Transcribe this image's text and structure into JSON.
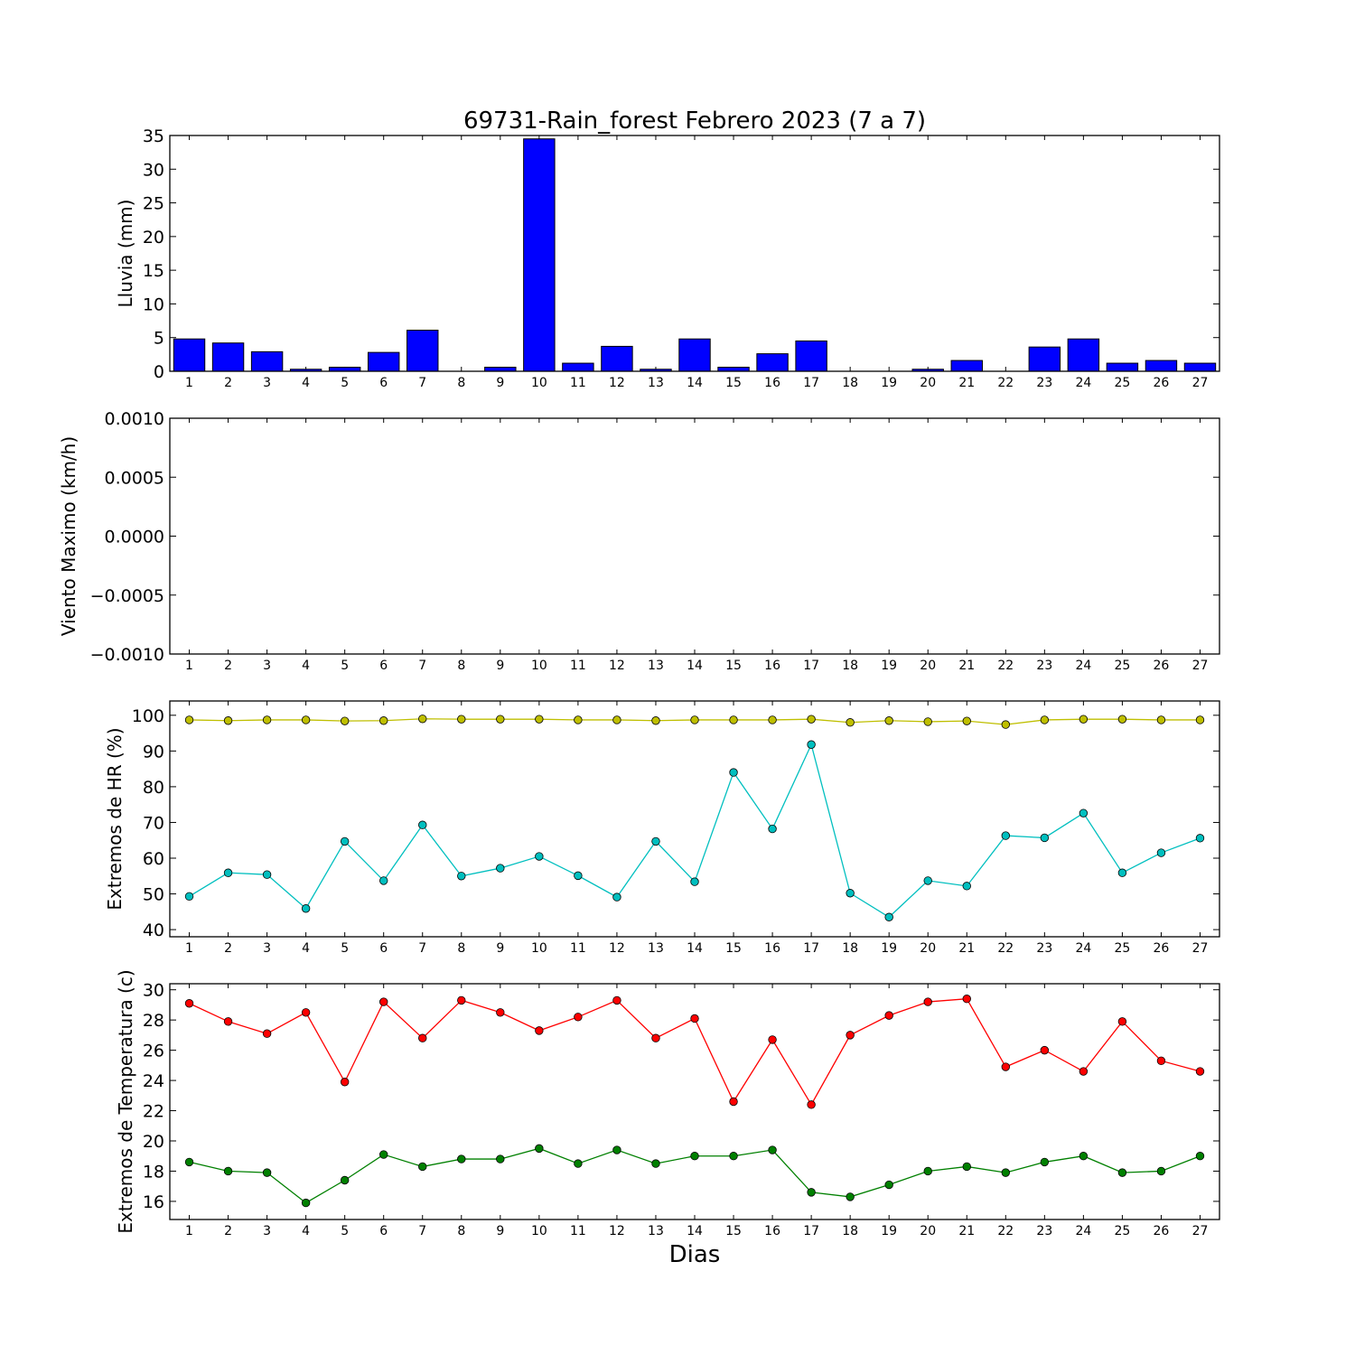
{
  "title": "69731-Rain_forest Febrero 2023  (7 a 7)",
  "xlabel": "Dias",
  "chart_data": [
    {
      "type": "bar",
      "ylabel": "Lluvia (mm)",
      "ylim": [
        0,
        35
      ],
      "yticks": [
        "0",
        "5",
        "10",
        "15",
        "20",
        "25",
        "30",
        "35"
      ],
      "categories": [
        "1",
        "2",
        "3",
        "4",
        "5",
        "6",
        "7",
        "8",
        "9",
        "10",
        "11",
        "12",
        "13",
        "14",
        "15",
        "16",
        "17",
        "18",
        "19",
        "20",
        "21",
        "22",
        "23",
        "24",
        "25",
        "26",
        "27"
      ],
      "values": [
        4.8,
        4.2,
        2.9,
        0.3,
        0.6,
        2.8,
        6.1,
        0,
        0.6,
        34.5,
        1.2,
        3.7,
        0.3,
        4.8,
        0.6,
        2.6,
        4.5,
        0,
        0,
        0.3,
        1.6,
        0,
        3.6,
        4.8,
        1.2,
        1.6,
        1.2
      ],
      "color": "#0000ff",
      "grid": false
    },
    {
      "type": "line",
      "ylabel": "Viento Maximo (km/h)",
      "ylim": [
        -0.001,
        0.001
      ],
      "yticks": [
        "0.0010",
        "0.0005",
        "0.0000",
        "−0.0005",
        "−0.0010"
      ],
      "x": [
        1,
        2,
        3,
        4,
        5,
        6,
        7,
        8,
        9,
        10,
        11,
        12,
        13,
        14,
        15,
        16,
        17,
        18,
        19,
        20,
        21,
        22,
        23,
        24,
        25,
        26,
        27
      ],
      "series": [],
      "grid": false
    },
    {
      "type": "line",
      "ylabel": "Extremos de HR (%)",
      "ylim": [
        38,
        104
      ],
      "yticks": [
        "40",
        "50",
        "60",
        "70",
        "80",
        "90",
        "100"
      ],
      "x": [
        1,
        2,
        3,
        4,
        5,
        6,
        7,
        8,
        9,
        10,
        11,
        12,
        13,
        14,
        15,
        16,
        17,
        18,
        19,
        20,
        21,
        22,
        23,
        24,
        25,
        26,
        27
      ],
      "series": [
        {
          "color": "#bfbf00",
          "values": [
            98.7,
            98.5,
            98.7,
            98.7,
            98.4,
            98.5,
            99.0,
            98.9,
            98.9,
            98.9,
            98.7,
            98.7,
            98.5,
            98.7,
            98.7,
            98.7,
            98.9,
            98.0,
            98.5,
            98.2,
            98.4,
            97.4,
            98.7,
            98.9,
            98.9,
            98.7,
            98.7
          ]
        },
        {
          "color": "#00bfbf",
          "values": [
            49.3,
            55.9,
            55.4,
            45.9,
            64.7,
            53.7,
            69.3,
            55.0,
            57.2,
            60.5,
            55.1,
            49.1,
            64.7,
            53.4,
            84.0,
            68.2,
            91.8,
            50.2,
            43.5,
            53.7,
            52.2,
            66.3,
            65.7,
            72.6,
            55.9,
            61.5,
            65.6
          ]
        }
      ],
      "grid": false
    },
    {
      "type": "line",
      "ylabel": "Extremos de Temperatura (c)",
      "ylim": [
        14.8,
        30.4
      ],
      "yticks": [
        "16",
        "18",
        "20",
        "22",
        "24",
        "26",
        "28",
        "30"
      ],
      "x": [
        1,
        2,
        3,
        4,
        5,
        6,
        7,
        8,
        9,
        10,
        11,
        12,
        13,
        14,
        15,
        16,
        17,
        18,
        19,
        20,
        21,
        22,
        23,
        24,
        25,
        26,
        27
      ],
      "series": [
        {
          "color": "#ff0000",
          "values": [
            29.1,
            27.9,
            27.1,
            28.5,
            23.9,
            29.2,
            26.8,
            29.3,
            28.5,
            27.3,
            28.2,
            29.3,
            26.8,
            28.1,
            22.6,
            26.7,
            22.4,
            27.0,
            28.3,
            29.2,
            29.4,
            24.9,
            26.0,
            24.6,
            27.9,
            25.3,
            24.6
          ]
        },
        {
          "color": "#008000",
          "values": [
            18.6,
            18.0,
            17.9,
            15.9,
            17.4,
            19.1,
            18.3,
            18.8,
            18.8,
            19.5,
            18.5,
            19.4,
            18.5,
            19.0,
            19.0,
            19.4,
            16.6,
            16.3,
            17.1,
            18.0,
            18.3,
            17.9,
            18.6,
            19.0,
            17.9,
            18.0,
            19.0
          ]
        }
      ],
      "grid": false
    }
  ]
}
